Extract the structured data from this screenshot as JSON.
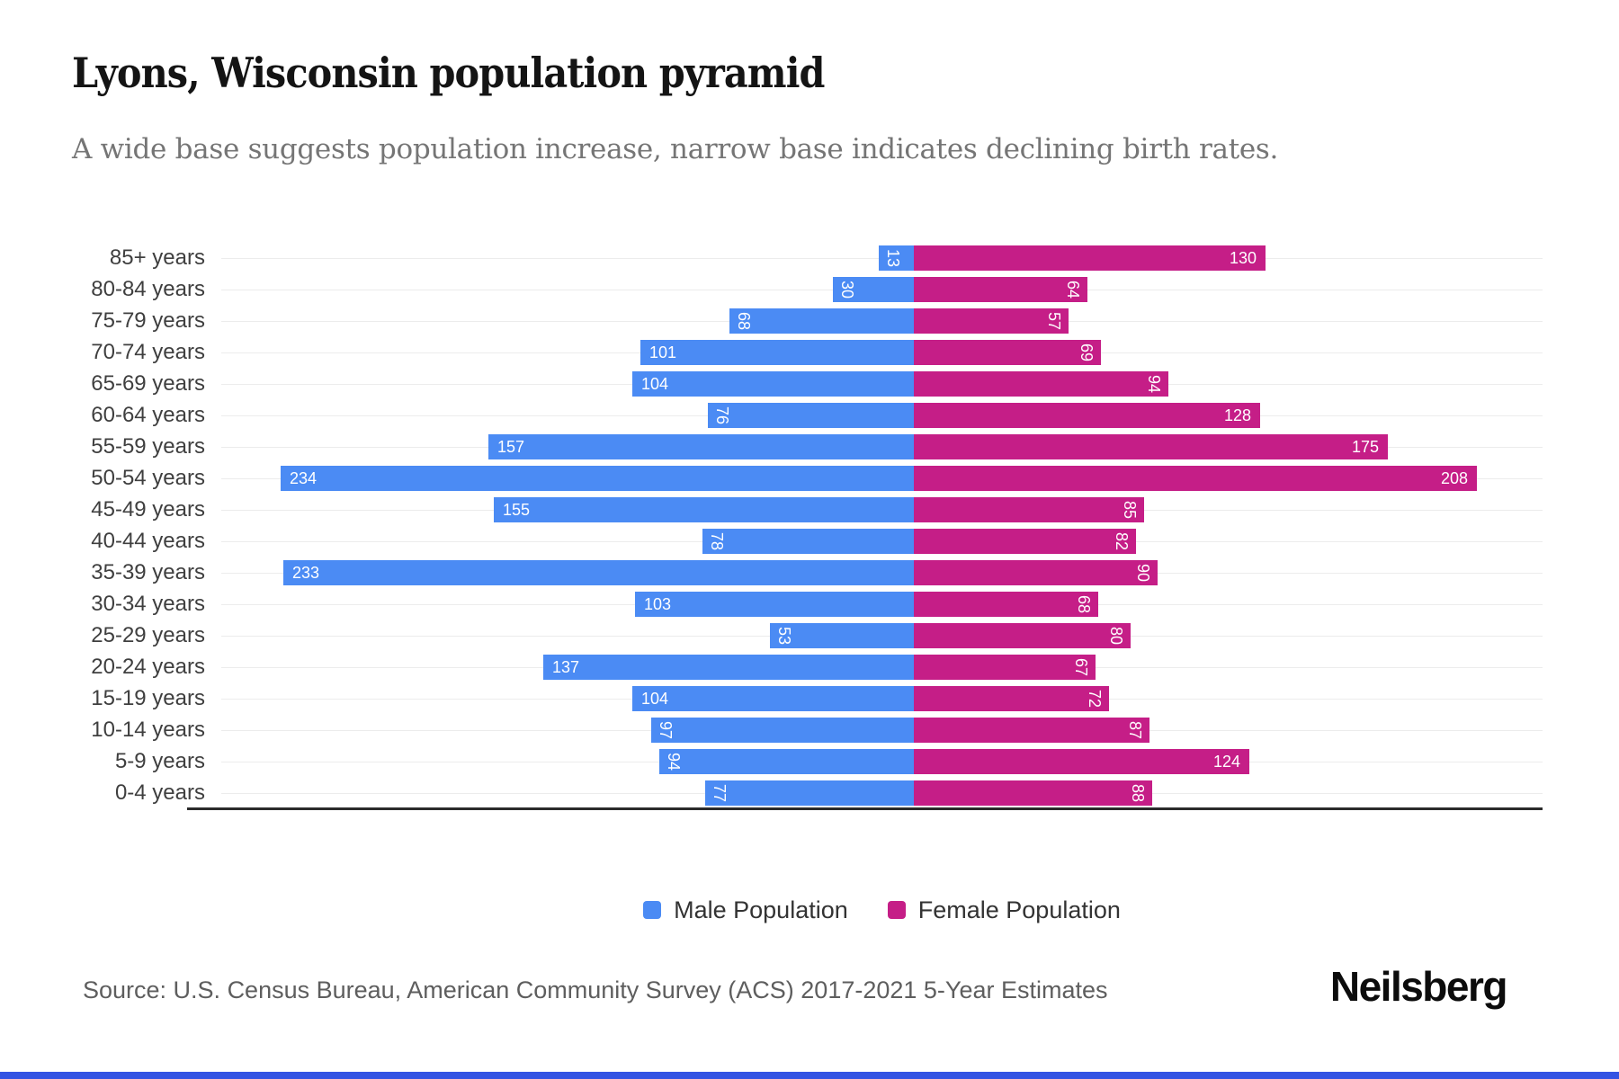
{
  "header": {
    "title": "Lyons, Wisconsin population pyramid",
    "subtitle": "A wide base suggests population increase, narrow base indicates declining birth rates."
  },
  "chart_data": {
    "type": "bar",
    "variant": "population-pyramid",
    "title": "Lyons, Wisconsin population pyramid",
    "xlabel": "",
    "ylabel": "",
    "categories": [
      "85+ years",
      "80-84 years",
      "75-79 years",
      "70-74 years",
      "65-69 years",
      "60-64 years",
      "55-59 years",
      "50-54 years",
      "45-49 years",
      "40-44 years",
      "35-39 years",
      "30-34 years",
      "25-29 years",
      "20-24 years",
      "15-19 years",
      "10-14 years",
      "5-9 years",
      "0-4 years"
    ],
    "series": [
      {
        "name": "Male Population",
        "side": "left",
        "color": "#4B8BF4",
        "values": [
          13,
          30,
          68,
          101,
          104,
          76,
          157,
          234,
          155,
          78,
          233,
          103,
          53,
          137,
          104,
          97,
          94,
          77
        ]
      },
      {
        "name": "Female Population",
        "side": "right",
        "color": "#C51E87",
        "values": [
          130,
          64,
          57,
          69,
          94,
          128,
          175,
          208,
          85,
          82,
          90,
          68,
          80,
          67,
          72,
          87,
          124,
          88
        ]
      }
    ],
    "value_label_threshold": 100,
    "value_labels": "inside-end, rotated 90deg when value below threshold",
    "xlim_left": [
      0,
      255
    ],
    "xlim_right": [
      0,
      232
    ],
    "grid": true,
    "legend_position": "bottom"
  },
  "legend": {
    "items": [
      {
        "label": "Male Population",
        "color": "#4B8BF4"
      },
      {
        "label": "Female Population",
        "color": "#C51E87"
      }
    ]
  },
  "footer": {
    "source": "Source: U.S. Census Bureau, American Community Survey (ACS) 2017-2021 5-Year Estimates",
    "brand": "Neilsberg"
  },
  "colors": {
    "male": "#4B8BF4",
    "female": "#C51E87",
    "gridline": "#ececec",
    "axis": "#2b2b2b",
    "accent_bottom_bar": "#3353E3"
  }
}
